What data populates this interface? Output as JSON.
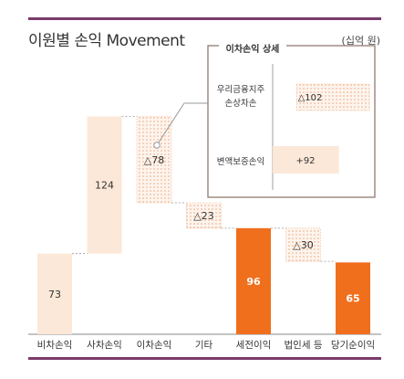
{
  "header": {
    "title": "이원별 손익 Movement",
    "unit": "(십억 원)"
  },
  "chart_data": {
    "type": "bar",
    "subtype": "waterfall",
    "categories": [
      "비차손익",
      "사차손익",
      "이차손익",
      "기타",
      "세전이익",
      "법인세 등",
      "당기순이익"
    ],
    "values": [
      73,
      124,
      -78,
      -23,
      96,
      -30,
      65
    ],
    "value_labels": [
      "73",
      "124",
      "△78",
      "△23",
      "96",
      "△30",
      "65"
    ],
    "bar_kinds": [
      "increase",
      "increase",
      "decrease",
      "decrease",
      "total",
      "decrease",
      "total"
    ],
    "colors": {
      "increase": "#fce8d8",
      "decrease": "#f4b58a",
      "total": "#f06f1d",
      "accent_line": "#7a3b6a",
      "connector": "#999999"
    },
    "inset": {
      "title": "이차손익 상세",
      "items": [
        {
          "label": "우리금융지주 손상차손",
          "value": -102,
          "value_label": "△102"
        },
        {
          "label": "변액보증손익",
          "value": 92,
          "value_label": "+92"
        }
      ]
    }
  }
}
